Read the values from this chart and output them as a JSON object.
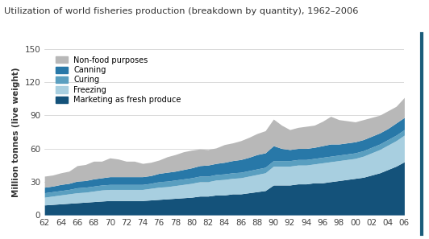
{
  "title": "Utilization of world fisheries production (breakdown by quantity), 1962–2006",
  "ylabel": "Million tonnes (live weight)",
  "years": [
    1962,
    1963,
    1964,
    1965,
    1966,
    1967,
    1968,
    1969,
    1970,
    1971,
    1972,
    1973,
    1974,
    1975,
    1976,
    1977,
    1978,
    1979,
    1980,
    1981,
    1982,
    1983,
    1984,
    1985,
    1986,
    1987,
    1988,
    1989,
    1990,
    1991,
    1992,
    1993,
    1994,
    1995,
    1996,
    1997,
    1998,
    1999,
    2000,
    2001,
    2002,
    2003,
    2004,
    2005,
    2006
  ],
  "layer_colors": {
    "Marketing as fresh produce": "#14527a",
    "Freezing": "#a8cfe0",
    "Curing": "#5a9fc0",
    "Canning": "#2878a8",
    "Non-food purposes": "#b8b8b8"
  },
  "layer_values": {
    "Marketing as fresh produce": [
      9,
      9.5,
      10,
      10.5,
      11,
      11.5,
      12,
      12.5,
      13,
      13,
      13,
      13,
      13,
      13.5,
      14,
      14.5,
      15,
      15.5,
      16,
      17,
      17,
      18,
      18,
      19,
      19,
      20,
      21,
      22,
      27,
      27,
      27,
      28,
      28,
      29,
      29,
      30,
      31,
      32,
      33,
      34,
      36,
      38,
      41,
      44,
      48
    ],
    "Freezing": [
      7,
      7.5,
      8,
      8.5,
      9,
      9,
      9.5,
      10,
      10,
      10,
      10,
      10,
      10,
      10.5,
      11,
      11,
      11.5,
      12,
      12.5,
      13,
      13,
      13.5,
      14,
      14,
      14.5,
      15,
      15.5,
      16,
      17,
      17,
      17,
      17,
      17,
      17,
      18,
      18,
      18,
      18,
      18,
      19,
      20,
      21,
      22,
      23,
      24
    ],
    "Curing": [
      4,
      4,
      4,
      4,
      4.5,
      4.5,
      4.5,
      4.5,
      4.5,
      4.5,
      4.5,
      4.5,
      4.5,
      4.5,
      5,
      5,
      5,
      5,
      5,
      5,
      5,
      5,
      5,
      5,
      5,
      5,
      5,
      5,
      5,
      5,
      5,
      5,
      5,
      5,
      5,
      5,
      5,
      5,
      5,
      5,
      5,
      5,
      5,
      5,
      5
    ],
    "Canning": [
      5,
      5,
      5.5,
      5.5,
      6,
      6,
      6.5,
      6.5,
      7,
      7,
      7,
      7,
      7,
      7,
      7.5,
      8,
      8,
      8.5,
      9,
      9.5,
      10,
      10,
      10.5,
      11,
      11.5,
      12,
      13,
      13,
      13.5,
      11,
      10,
      10,
      10,
      10,
      10.5,
      11,
      10,
      10,
      10,
      10,
      10,
      10,
      10,
      11,
      11
    ],
    "Non-food purposes": [
      10,
      10,
      10.5,
      11,
      14,
      14.5,
      16,
      15,
      17,
      16,
      14,
      14,
      12,
      12,
      12,
      14,
      15,
      16,
      16,
      15,
      14,
      14,
      16,
      16,
      17,
      18,
      19,
      20,
      24,
      21,
      18,
      19,
      20,
      20,
      22,
      25,
      22,
      20,
      18,
      18,
      17,
      16,
      16,
      15,
      18
    ]
  },
  "stack_order": [
    "Marketing as fresh produce",
    "Freezing",
    "Curing",
    "Canning",
    "Non-food purposes"
  ],
  "legend_order": [
    "Non-food purposes",
    "Canning",
    "Curing",
    "Freezing",
    "Marketing as fresh produce"
  ],
  "ylim": [
    0,
    150
  ],
  "ytick_values": [
    0,
    30,
    60,
    90,
    120,
    150
  ],
  "bg_color": "#ffffff",
  "border_color": "#1a5c7a",
  "title_fontsize": 8.2,
  "axis_label_fontsize": 7.5,
  "tick_fontsize": 7.5,
  "legend_fontsize": 7.0
}
